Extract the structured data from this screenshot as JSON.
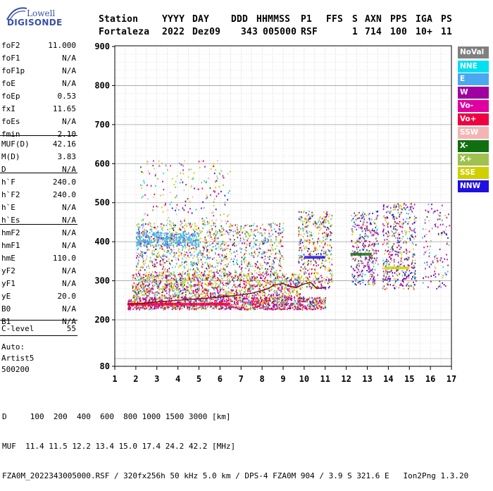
{
  "logo": {
    "top": "Lowell",
    "bottom": "DIGISONDE"
  },
  "header": {
    "labels": [
      "Station",
      "YYYY",
      "DAY",
      "DDD",
      "HHMMSS",
      "P1",
      "FFS",
      "S",
      "AXN",
      "PPS",
      "IGA",
      "PS"
    ],
    "values": [
      "Fortaleza",
      "2022",
      "Dez09",
      "343",
      "005000",
      "RSF",
      "",
      "1",
      "714",
      "100",
      "10+",
      "11"
    ]
  },
  "params": {
    "group1": [
      {
        "label": "foF2",
        "value": "11.000"
      },
      {
        "label": "foF1",
        "value": "N/A"
      },
      {
        "label": "foF1p",
        "value": "N/A"
      },
      {
        "label": "foE",
        "value": "N/A"
      },
      {
        "label": "foEp",
        "value": "0.53"
      },
      {
        "label": "fxI",
        "value": "11.65"
      },
      {
        "label": "foEs",
        "value": "N/A"
      },
      {
        "label": "fmin",
        "value": "2.10"
      }
    ],
    "group2": [
      {
        "label": "MUF(D)",
        "value": "42.16"
      },
      {
        "label": "M(D)",
        "value": "3.83"
      },
      {
        "label": "D",
        "value": "N/A"
      }
    ],
    "group3": [
      {
        "label": "h`F",
        "value": "240.0"
      },
      {
        "label": "h`F2",
        "value": "240.0"
      },
      {
        "label": "h`E",
        "value": "N/A"
      },
      {
        "label": "h`Es",
        "value": "N/A"
      }
    ],
    "group4": [
      {
        "label": "hmF2",
        "value": "N/A"
      },
      {
        "label": "hmF1",
        "value": "N/A"
      },
      {
        "label": "hmE",
        "value": "110.0"
      },
      {
        "label": "yF2",
        "value": "N/A"
      },
      {
        "label": "yF1",
        "value": "N/A"
      },
      {
        "label": "yE",
        "value": "20.0"
      },
      {
        "label": "B0",
        "value": "N/A"
      },
      {
        "label": "B1",
        "value": "N/A"
      }
    ],
    "clevel": {
      "label": "C-level",
      "value": "55"
    },
    "auto": [
      "Auto:",
      "Artist5",
      "500200"
    ]
  },
  "footer": {
    "d_line": "D     100  200  400  600  800 1000 1500 3000 [km]",
    "muf_line": "MUF  11.4 11.5 12.2 13.4 15.0 17.4 24.2 42.2 [MHz]",
    "file_line": "FZA0M_2022343005000.RSF / 320fx256h 50 kHz 5.0 km / DPS-4 FZA0M 904 / 3.9 S 321.6 E   Ion2Png 1.3.20"
  },
  "legend": [
    {
      "label": "NoVal",
      "color": "#808080"
    },
    {
      "label": "NNE",
      "color": "#00e0f0"
    },
    {
      "label": "E",
      "color": "#4aa8f0"
    },
    {
      "label": "W",
      "color": "#a000a0"
    },
    {
      "label": "Vo-",
      "color": "#e000a0"
    },
    {
      "label": "Vo+",
      "color": "#f00040"
    },
    {
      "label": "SSW",
      "color": "#f4b4b4"
    },
    {
      "label": "X-",
      "color": "#107010"
    },
    {
      "label": "X+",
      "color": "#a0c050"
    },
    {
      "label": "SSE",
      "color": "#d0d000"
    },
    {
      "label": "NNW",
      "color": "#2010e0"
    }
  ],
  "chart_data": {
    "type": "scatter",
    "x_ticks": [
      "1",
      "2",
      "3",
      "4",
      "5",
      "6",
      "7",
      "8",
      "9",
      "10",
      "11",
      "12",
      "13",
      "14",
      "15",
      "16",
      "17"
    ],
    "y_ticks": [
      "80",
      "200",
      "300",
      "400",
      "500",
      "600",
      "700",
      "800",
      "900"
    ],
    "xlim": [
      1,
      17
    ],
    "ylim_axis_labels": [
      80,
      900
    ],
    "grid": true,
    "legend_position": "right",
    "trace": {
      "x": [
        1.6,
        2.0,
        2.5,
        3.0,
        3.5,
        4.0,
        4.5,
        5.0,
        5.5,
        6.0,
        6.5,
        7.0,
        7.5,
        8.0,
        8.3,
        8.6,
        9.0,
        9.3,
        9.6,
        10.0,
        10.3,
        10.6,
        11.0
      ],
      "y": [
        240,
        241,
        243,
        246,
        248,
        250,
        252,
        254,
        256,
        258,
        261,
        264,
        268,
        275,
        280,
        290,
        293,
        287,
        282,
        292,
        296,
        280,
        283
      ]
    }
  }
}
